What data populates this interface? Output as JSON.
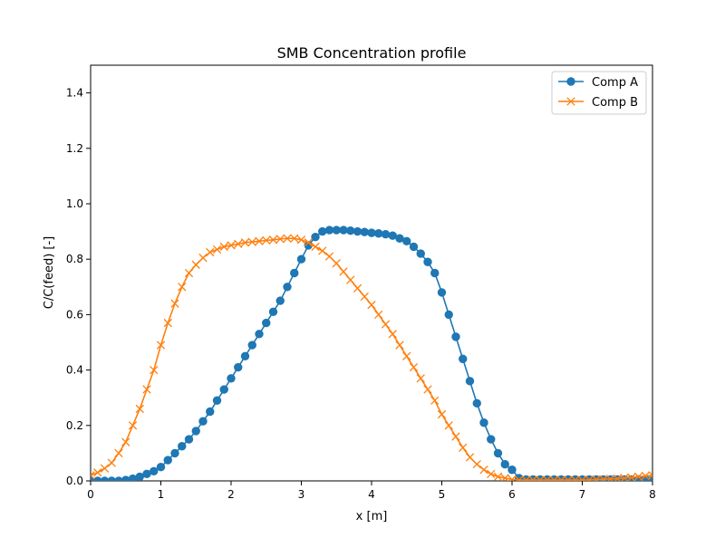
{
  "chart_data": {
    "type": "line",
    "title": "SMB Concentration profile",
    "xlabel": "x [m]",
    "ylabel": "C/C(feed) [-]",
    "xlim": [
      0,
      8
    ],
    "ylim": [
      0,
      1.5
    ],
    "xticks": [
      "0",
      "1",
      "2",
      "3",
      "4",
      "5",
      "6",
      "7",
      "8"
    ],
    "yticks": [
      "0.0",
      "0.2",
      "0.4",
      "0.6",
      "0.8",
      "1.0",
      "1.2",
      "1.4"
    ],
    "grid": false,
    "legend_position": "top-right",
    "series": [
      {
        "name": "Comp A",
        "color": "#1f77b4",
        "marker": "circle",
        "x": [
          0.0,
          0.1,
          0.2,
          0.3,
          0.4,
          0.5,
          0.6,
          0.7,
          0.8,
          0.9,
          1.0,
          1.1,
          1.2,
          1.3,
          1.4,
          1.5,
          1.6,
          1.7,
          1.8,
          1.9,
          2.0,
          2.1,
          2.2,
          2.3,
          2.4,
          2.5,
          2.6,
          2.7,
          2.8,
          2.9,
          3.0,
          3.1,
          3.2,
          3.3,
          3.4,
          3.5,
          3.6,
          3.7,
          3.8,
          3.9,
          4.0,
          4.1,
          4.2,
          4.3,
          4.4,
          4.5,
          4.6,
          4.7,
          4.8,
          4.9,
          5.0,
          5.1,
          5.2,
          5.3,
          5.4,
          5.5,
          5.6,
          5.7,
          5.8,
          5.9,
          6.0,
          6.1,
          6.2,
          6.3,
          6.4,
          6.5,
          6.6,
          6.7,
          6.8,
          6.9,
          7.0,
          7.1,
          7.2,
          7.3,
          7.4,
          7.5,
          7.6,
          7.7,
          7.8,
          7.9,
          8.0
        ],
        "y": [
          0.0,
          0.0,
          0.0,
          0.0,
          0.0,
          0.003,
          0.008,
          0.015,
          0.025,
          0.035,
          0.05,
          0.075,
          0.1,
          0.125,
          0.15,
          0.18,
          0.215,
          0.25,
          0.29,
          0.33,
          0.37,
          0.41,
          0.45,
          0.49,
          0.53,
          0.57,
          0.61,
          0.65,
          0.7,
          0.75,
          0.8,
          0.85,
          0.88,
          0.9,
          0.905,
          0.905,
          0.905,
          0.903,
          0.9,
          0.898,
          0.895,
          0.893,
          0.89,
          0.885,
          0.875,
          0.865,
          0.845,
          0.82,
          0.79,
          0.75,
          0.68,
          0.6,
          0.52,
          0.44,
          0.36,
          0.28,
          0.21,
          0.15,
          0.1,
          0.06,
          0.04,
          0.01,
          0.005,
          0.005,
          0.005,
          0.005,
          0.005,
          0.005,
          0.005,
          0.005,
          0.005,
          0.005,
          0.005,
          0.005,
          0.005,
          0.005,
          0.005,
          0.005,
          0.005,
          0.005,
          0.005
        ]
      },
      {
        "name": "Comp B",
        "color": "#ff7f0e",
        "marker": "x",
        "x": [
          0.0,
          0.1,
          0.2,
          0.3,
          0.4,
          0.5,
          0.6,
          0.7,
          0.8,
          0.9,
          1.0,
          1.1,
          1.2,
          1.3,
          1.4,
          1.5,
          1.6,
          1.7,
          1.8,
          1.9,
          2.0,
          2.1,
          2.2,
          2.3,
          2.4,
          2.5,
          2.6,
          2.7,
          2.8,
          2.9,
          3.0,
          3.1,
          3.2,
          3.3,
          3.4,
          3.5,
          3.6,
          3.7,
          3.8,
          3.9,
          4.0,
          4.1,
          4.2,
          4.3,
          4.4,
          4.5,
          4.6,
          4.7,
          4.8,
          4.9,
          5.0,
          5.1,
          5.2,
          5.3,
          5.4,
          5.5,
          5.6,
          5.7,
          5.8,
          5.9,
          6.0,
          6.1,
          6.2,
          6.3,
          6.4,
          6.5,
          6.6,
          6.7,
          6.8,
          6.9,
          7.0,
          7.1,
          7.2,
          7.3,
          7.4,
          7.5,
          7.6,
          7.7,
          7.8,
          7.9,
          8.0
        ],
        "y": [
          0.02,
          0.03,
          0.045,
          0.065,
          0.1,
          0.14,
          0.2,
          0.26,
          0.33,
          0.4,
          0.49,
          0.57,
          0.64,
          0.7,
          0.75,
          0.78,
          0.805,
          0.825,
          0.835,
          0.845,
          0.85,
          0.855,
          0.86,
          0.862,
          0.865,
          0.868,
          0.87,
          0.873,
          0.875,
          0.875,
          0.87,
          0.86,
          0.845,
          0.83,
          0.81,
          0.785,
          0.755,
          0.725,
          0.695,
          0.665,
          0.635,
          0.6,
          0.565,
          0.53,
          0.49,
          0.45,
          0.41,
          0.37,
          0.33,
          0.29,
          0.24,
          0.2,
          0.16,
          0.12,
          0.085,
          0.06,
          0.04,
          0.025,
          0.015,
          0.01,
          0.005,
          0.003,
          0.003,
          0.003,
          0.003,
          0.003,
          0.003,
          0.003,
          0.003,
          0.003,
          0.003,
          0.004,
          0.005,
          0.006,
          0.007,
          0.008,
          0.01,
          0.012,
          0.015,
          0.018,
          0.02
        ]
      }
    ]
  }
}
